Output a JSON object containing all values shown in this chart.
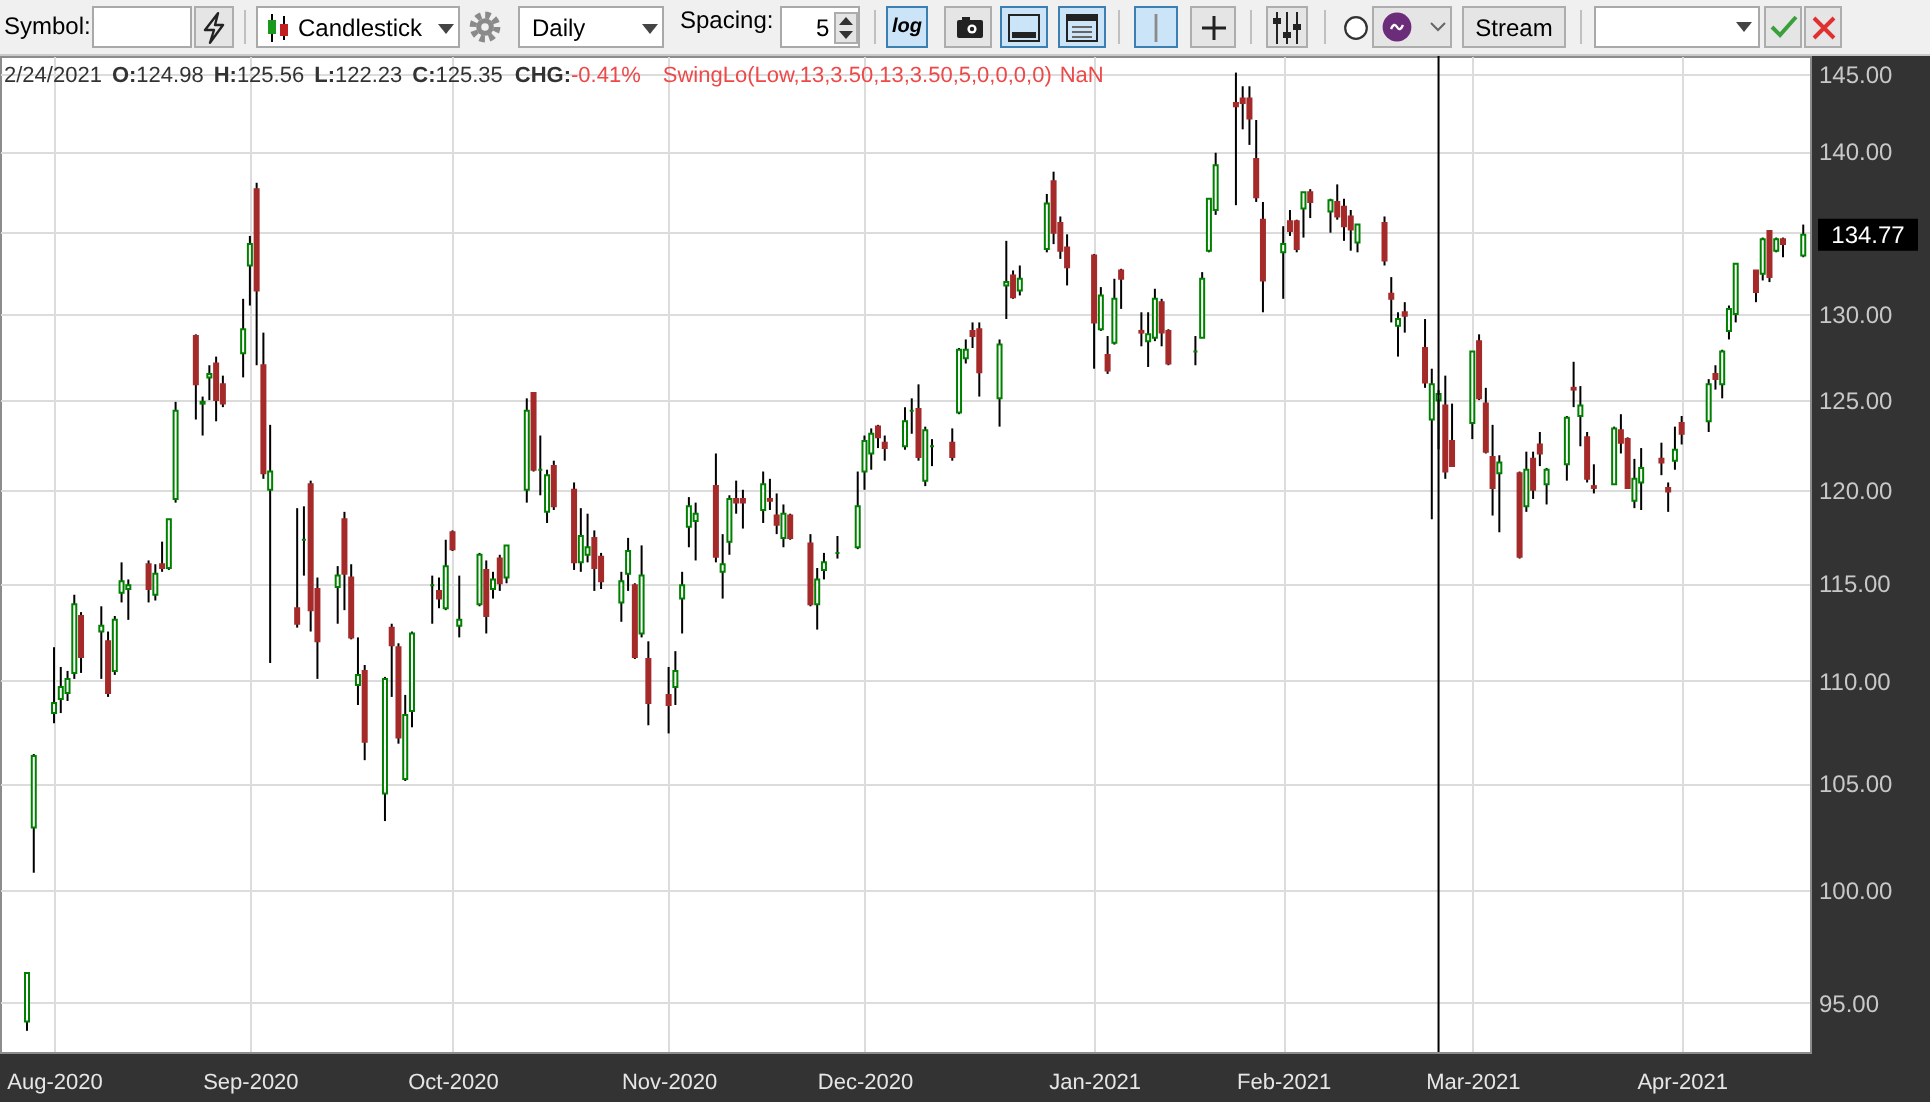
{
  "chart_data": {
    "type": "candlestick",
    "x": [
      "2020-07-30",
      "2020-07-31",
      "2020-08-03",
      "2020-08-04",
      "2020-08-05",
      "2020-08-06",
      "2020-08-07",
      "2020-08-10",
      "2020-08-11",
      "2020-08-12",
      "2020-08-13",
      "2020-08-14",
      "2020-08-17",
      "2020-08-18",
      "2020-08-19",
      "2020-08-20",
      "2020-08-21",
      "2020-08-24",
      "2020-08-25",
      "2020-08-26",
      "2020-08-27",
      "2020-08-28",
      "2020-08-31",
      "2020-09-01",
      "2020-09-02",
      "2020-09-03",
      "2020-09-04",
      "2020-09-08",
      "2020-09-09",
      "2020-09-10",
      "2020-09-11",
      "2020-09-14",
      "2020-09-15",
      "2020-09-16",
      "2020-09-17",
      "2020-09-18",
      "2020-09-21",
      "2020-09-22",
      "2020-09-23",
      "2020-09-24",
      "2020-09-25",
      "2020-09-28",
      "2020-09-29",
      "2020-09-30",
      "2020-10-01",
      "2020-10-02",
      "2020-10-05",
      "2020-10-06",
      "2020-10-07",
      "2020-10-08",
      "2020-10-09",
      "2020-10-12",
      "2020-10-13",
      "2020-10-14",
      "2020-10-15",
      "2020-10-16",
      "2020-10-19",
      "2020-10-20",
      "2020-10-21",
      "2020-10-22",
      "2020-10-23",
      "2020-10-26",
      "2020-10-27",
      "2020-10-28",
      "2020-10-29",
      "2020-10-30",
      "2020-11-02",
      "2020-11-03",
      "2020-11-04",
      "2020-11-05",
      "2020-11-06",
      "2020-11-09",
      "2020-11-10",
      "2020-11-11",
      "2020-11-12",
      "2020-11-13",
      "2020-11-16",
      "2020-11-17",
      "2020-11-18",
      "2020-11-19",
      "2020-11-20",
      "2020-11-23",
      "2020-11-24",
      "2020-11-25",
      "2020-11-27",
      "2020-11-30",
      "2020-12-01",
      "2020-12-02",
      "2020-12-03",
      "2020-12-04",
      "2020-12-07",
      "2020-12-08",
      "2020-12-09",
      "2020-12-10",
      "2020-12-11",
      "2020-12-14",
      "2020-12-15",
      "2020-12-16",
      "2020-12-17",
      "2020-12-18",
      "2020-12-21",
      "2020-12-22",
      "2020-12-23",
      "2020-12-24",
      "2020-12-28",
      "2020-12-29",
      "2020-12-30",
      "2020-12-31",
      "2021-01-04",
      "2021-01-05",
      "2021-01-06",
      "2021-01-07",
      "2021-01-08",
      "2021-01-11",
      "2021-01-12",
      "2021-01-13",
      "2021-01-14",
      "2021-01-15",
      "2021-01-19",
      "2021-01-20",
      "2021-01-21",
      "2021-01-22",
      "2021-01-25",
      "2021-01-26",
      "2021-01-27",
      "2021-01-28",
      "2021-01-29",
      "2021-02-01",
      "2021-02-02",
      "2021-02-03",
      "2021-02-04",
      "2021-02-05",
      "2021-02-08",
      "2021-02-09",
      "2021-02-10",
      "2021-02-11",
      "2021-02-12",
      "2021-02-16",
      "2021-02-17",
      "2021-02-18",
      "2021-02-19",
      "2021-02-22",
      "2021-02-23",
      "2021-02-24",
      "2021-02-25",
      "2021-02-26",
      "2021-03-01",
      "2021-03-02",
      "2021-03-03",
      "2021-03-04",
      "2021-03-05",
      "2021-03-08",
      "2021-03-09",
      "2021-03-10",
      "2021-03-11",
      "2021-03-12",
      "2021-03-15",
      "2021-03-16",
      "2021-03-17",
      "2021-03-18",
      "2021-03-19",
      "2021-03-22",
      "2021-03-23",
      "2021-03-24",
      "2021-03-25",
      "2021-03-26",
      "2021-03-29",
      "2021-03-30",
      "2021-03-31",
      "2021-04-01",
      "2021-04-05",
      "2021-04-06",
      "2021-04-07",
      "2021-04-08",
      "2021-04-09",
      "2021-04-12",
      "2021-04-13",
      "2021-04-14",
      "2021-04-15",
      "2021-04-16",
      "2021-04-19"
    ],
    "ohlc": [
      [
        94.2,
        96.3,
        93.8,
        96.3
      ],
      [
        102.9,
        106.4,
        100.8,
        106.3
      ],
      [
        108.4,
        111.7,
        107.9,
        108.9
      ],
      [
        109.1,
        110.7,
        108.4,
        109.7
      ],
      [
        109.4,
        110.5,
        109.0,
        110.1
      ],
      [
        110.4,
        114.4,
        110.1,
        113.9
      ],
      [
        113.3,
        113.5,
        110.4,
        111.2
      ],
      [
        112.5,
        113.8,
        110.1,
        112.8
      ],
      [
        112.0,
        112.5,
        109.2,
        109.4
      ],
      [
        110.5,
        113.3,
        110.3,
        113.1
      ],
      [
        114.5,
        116.1,
        114.0,
        115.1
      ],
      [
        114.7,
        115.2,
        113.1,
        114.9
      ],
      [
        116.0,
        116.2,
        114.0,
        114.7
      ],
      [
        114.4,
        116.0,
        114.1,
        115.5
      ],
      [
        116.0,
        117.2,
        115.6,
        115.8
      ],
      [
        115.8,
        118.4,
        115.7,
        118.4
      ],
      [
        119.5,
        124.9,
        119.3,
        124.4
      ],
      [
        128.7,
        128.8,
        123.9,
        125.9
      ],
      [
        124.8,
        125.2,
        123.0,
        124.9
      ],
      [
        126.3,
        127.0,
        125.0,
        126.5
      ],
      [
        127.1,
        127.5,
        123.8,
        125.0
      ],
      [
        125.9,
        126.4,
        124.6,
        124.8
      ],
      [
        127.7,
        130.9,
        126.3,
        129.1
      ],
      [
        132.9,
        134.7,
        130.5,
        134.2
      ],
      [
        137.6,
        138.0,
        127.0,
        131.4
      ],
      [
        127.0,
        128.9,
        120.6,
        120.9
      ],
      [
        120.0,
        123.6,
        110.9,
        121.0
      ],
      [
        113.7,
        119.0,
        112.7,
        112.9
      ],
      [
        117.3,
        119.1,
        115.4,
        117.3
      ],
      [
        120.3,
        120.5,
        112.5,
        113.6
      ],
      [
        114.7,
        115.3,
        110.1,
        112.0
      ],
      [
        114.8,
        115.9,
        112.9,
        115.4
      ],
      [
        118.4,
        118.8,
        113.6,
        115.5
      ],
      [
        115.3,
        116.0,
        112.1,
        112.2
      ],
      [
        109.8,
        112.2,
        108.8,
        110.3
      ],
      [
        110.5,
        110.8,
        106.1,
        107.0
      ],
      [
        104.5,
        110.2,
        103.2,
        110.1
      ],
      [
        112.7,
        112.9,
        109.2,
        111.8
      ],
      [
        111.7,
        111.9,
        106.9,
        107.2
      ],
      [
        105.2,
        109.3,
        105.1,
        108.3
      ],
      [
        108.5,
        112.5,
        107.7,
        112.4
      ],
      [
        114.9,
        115.4,
        112.9,
        114.9
      ],
      [
        114.6,
        115.3,
        113.7,
        114.2
      ],
      [
        113.7,
        117.3,
        113.6,
        115.9
      ],
      [
        117.7,
        117.8,
        116.7,
        116.8
      ],
      [
        112.8,
        115.4,
        112.2,
        113.1
      ],
      [
        113.9,
        116.6,
        113.8,
        116.5
      ],
      [
        115.7,
        116.2,
        112.4,
        113.3
      ],
      [
        114.7,
        115.6,
        114.2,
        115.2
      ],
      [
        116.3,
        116.5,
        114.6,
        115.0
      ],
      [
        115.3,
        117.0,
        115.0,
        117.0
      ],
      [
        120.0,
        125.1,
        119.3,
        124.4
      ],
      [
        125.4,
        125.4,
        121.0,
        121.1
      ],
      [
        121.1,
        123.0,
        119.7,
        121.1
      ],
      [
        118.8,
        121.1,
        118.2,
        120.8
      ],
      [
        121.3,
        121.6,
        118.9,
        119.1
      ],
      [
        120.0,
        120.4,
        115.7,
        116.1
      ],
      [
        116.1,
        119.0,
        115.6,
        117.5
      ],
      [
        116.5,
        118.7,
        116.1,
        116.9
      ],
      [
        117.4,
        117.8,
        114.6,
        115.8
      ],
      [
        116.4,
        116.6,
        114.7,
        115.1
      ],
      [
        114.0,
        115.6,
        113.0,
        115.1
      ],
      [
        115.5,
        117.4,
        114.6,
        116.7
      ],
      [
        114.9,
        115.0,
        111.1,
        111.2
      ],
      [
        112.4,
        117.0,
        112.2,
        115.4
      ],
      [
        111.1,
        112.0,
        107.8,
        108.9
      ],
      [
        109.3,
        110.7,
        107.4,
        108.8
      ],
      [
        109.7,
        111.5,
        108.8,
        110.5
      ],
      [
        114.2,
        115.6,
        112.4,
        114.9
      ],
      [
        118.0,
        119.6,
        116.9,
        119.1
      ],
      [
        118.3,
        119.3,
        116.2,
        118.7
      ],
      [
        120.2,
        122.0,
        116.1,
        116.4
      ],
      [
        115.6,
        117.6,
        114.2,
        116.0
      ],
      [
        117.2,
        119.7,
        116.5,
        119.5
      ],
      [
        119.5,
        120.5,
        118.7,
        119.3
      ],
      [
        119.5,
        120.0,
        117.9,
        119.3
      ],
      [
        118.9,
        121.0,
        118.2,
        120.3
      ],
      [
        119.5,
        120.6,
        118.9,
        119.4
      ],
      [
        118.6,
        119.8,
        117.6,
        118.1
      ],
      [
        117.4,
        119.2,
        116.9,
        118.7
      ],
      [
        118.6,
        118.7,
        117.3,
        117.4
      ],
      [
        117.1,
        117.6,
        113.8,
        113.9
      ],
      [
        113.9,
        115.8,
        112.6,
        115.2
      ],
      [
        115.7,
        116.6,
        115.2,
        116.1
      ],
      [
        116.6,
        117.5,
        116.3,
        116.6
      ],
      [
        116.9,
        121.0,
        116.8,
        119.1
      ],
      [
        121.0,
        123.0,
        120.0,
        122.7
      ],
      [
        122.0,
        123.4,
        121.1,
        123.1
      ],
      [
        123.5,
        123.6,
        122.3,
        122.9
      ],
      [
        122.6,
        123.0,
        121.6,
        122.3
      ],
      [
        122.4,
        124.6,
        122.2,
        123.8
      ],
      [
        124.4,
        125.1,
        123.1,
        124.4
      ],
      [
        124.5,
        125.9,
        121.6,
        121.8
      ],
      [
        120.5,
        123.5,
        120.2,
        123.3
      ],
      [
        122.4,
        122.8,
        121.3,
        122.4
      ],
      [
        122.6,
        123.4,
        121.6,
        121.8
      ],
      [
        124.3,
        128.0,
        124.2,
        127.9
      ],
      [
        127.4,
        128.5,
        127.1,
        127.9
      ],
      [
        129.0,
        129.5,
        128.0,
        128.7
      ],
      [
        129.1,
        129.5,
        125.2,
        126.6
      ],
      [
        125.1,
        128.5,
        123.5,
        128.2
      ],
      [
        131.7,
        134.4,
        129.7,
        131.9
      ],
      [
        132.3,
        132.6,
        130.9,
        131.0
      ],
      [
        131.4,
        132.9,
        131.1,
        132.1
      ],
      [
        133.9,
        137.3,
        133.7,
        136.7
      ],
      [
        138.1,
        138.7,
        134.2,
        134.9
      ],
      [
        135.5,
        135.9,
        133.3,
        133.8
      ],
      [
        134.0,
        134.8,
        131.7,
        132.8
      ],
      [
        133.5,
        133.6,
        126.8,
        129.5
      ],
      [
        129.1,
        131.6,
        129.0,
        131.1
      ],
      [
        127.6,
        128.7,
        126.5,
        126.7
      ],
      [
        128.3,
        132.1,
        128.2,
        130.9
      ],
      [
        132.6,
        132.7,
        130.3,
        132.1
      ],
      [
        129.0,
        130.1,
        128.1,
        128.9
      ],
      [
        128.4,
        130.1,
        126.9,
        128.8
      ],
      [
        128.6,
        131.5,
        128.4,
        130.9
      ],
      [
        130.7,
        130.9,
        128.1,
        128.9
      ],
      [
        129.0,
        129.1,
        127.0,
        127.1
      ],
      [
        127.8,
        128.7,
        127.0,
        127.8
      ],
      [
        128.6,
        132.5,
        128.6,
        132.1
      ],
      [
        133.8,
        137.0,
        133.7,
        137.0
      ],
      [
        136.3,
        139.9,
        136.0,
        139.1
      ],
      [
        143.1,
        145.1,
        136.6,
        142.9
      ],
      [
        143.4,
        144.2,
        141.4,
        143.1
      ],
      [
        143.4,
        144.2,
        140.4,
        142.1
      ],
      [
        139.5,
        142.0,
        136.8,
        137.1
      ],
      [
        135.7,
        136.8,
        130.1,
        132.0
      ],
      [
        133.7,
        135.3,
        130.9,
        134.2
      ],
      [
        135.6,
        136.3,
        134.7,
        135.0
      ],
      [
        135.6,
        135.7,
        133.7,
        133.9
      ],
      [
        136.4,
        137.4,
        134.6,
        137.4
      ],
      [
        137.4,
        137.6,
        135.8,
        136.8
      ],
      [
        136.2,
        137.0,
        134.9,
        136.9
      ],
      [
        136.8,
        137.9,
        135.7,
        135.9
      ],
      [
        136.5,
        137.0,
        134.4,
        135.3
      ],
      [
        135.9,
        136.3,
        133.8,
        135.1
      ],
      [
        134.3,
        135.4,
        133.7,
        135.4
      ],
      [
        135.5,
        135.9,
        132.9,
        133.2
      ],
      [
        131.2,
        132.2,
        129.5,
        130.9
      ],
      [
        129.3,
        130.1,
        127.5,
        129.7
      ],
      [
        130.1,
        130.7,
        128.9,
        129.9
      ],
      [
        128.0,
        129.7,
        125.7,
        126.0
      ],
      [
        123.9,
        126.8,
        118.4,
        125.9
      ],
      [
        124.98,
        125.56,
        122.23,
        125.35
      ],
      [
        124.7,
        126.4,
        120.6,
        121.0
      ],
      [
        122.7,
        124.8,
        121.3,
        121.3
      ],
      [
        123.7,
        127.8,
        122.8,
        127.8
      ],
      [
        128.4,
        128.8,
        125.0,
        125.1
      ],
      [
        124.8,
        125.7,
        122.0,
        122.1
      ],
      [
        121.8,
        123.6,
        118.6,
        120.1
      ],
      [
        120.9,
        121.9,
        117.7,
        121.5
      ],
      [
        120.9,
        121.0,
        116.3,
        116.4
      ],
      [
        119.1,
        122.1,
        118.8,
        121.1
      ],
      [
        121.7,
        122.1,
        119.5,
        120.0
      ],
      [
        122.5,
        123.2,
        121.3,
        122.0
      ],
      [
        120.3,
        121.2,
        119.2,
        121.1
      ],
      [
        121.4,
        124.1,
        120.5,
        124.0
      ],
      [
        125.7,
        127.2,
        124.6,
        125.6
      ],
      [
        124.1,
        125.8,
        122.4,
        124.7
      ],
      [
        122.9,
        123.2,
        120.4,
        120.6
      ],
      [
        120.2,
        121.4,
        119.8,
        120.1
      ],
      [
        120.3,
        123.5,
        120.3,
        123.4
      ],
      [
        123.3,
        124.2,
        122.0,
        122.6
      ],
      [
        122.8,
        122.9,
        120.1,
        120.1
      ],
      [
        119.4,
        121.7,
        119.0,
        120.6
      ],
      [
        120.4,
        122.3,
        118.9,
        121.2
      ],
      [
        121.7,
        122.6,
        120.8,
        121.5
      ],
      [
        120.1,
        120.4,
        118.8,
        119.9
      ],
      [
        121.6,
        123.5,
        121.1,
        122.2
      ],
      [
        123.7,
        124.1,
        122.5,
        123.1
      ],
      [
        123.8,
        126.2,
        123.2,
        125.9
      ],
      [
        126.5,
        127.0,
        125.6,
        126.2
      ],
      [
        125.9,
        127.9,
        125.1,
        127.8
      ],
      [
        129.0,
        130.5,
        128.5,
        130.3
      ],
      [
        130.0,
        133.0,
        129.5,
        133.0
      ],
      [
        132.6,
        132.6,
        130.7,
        131.3
      ],
      [
        132.4,
        134.6,
        132.0,
        134.5
      ],
      [
        135.0,
        135.0,
        131.9,
        132.2
      ],
      [
        133.8,
        134.6,
        133.7,
        134.5
      ],
      [
        134.5,
        134.6,
        133.4,
        134.2
      ],
      [
        133.5,
        135.4,
        133.4,
        134.77
      ]
    ],
    "colors": [
      "#008000",
      "#008000",
      "#008000",
      "#008000",
      "#008000",
      "#008000",
      "#a52a2a",
      "#008000",
      "#a52a2a",
      "#008000",
      "#008000",
      "#008000",
      "#a52a2a",
      "#008000",
      "#a52a2a",
      "#008000",
      "#008000",
      "#a52a2a",
      "#008000",
      "#008000",
      "#a52a2a",
      "#a52a2a",
      "#008000",
      "#008000",
      "#a52a2a",
      "#a52a2a",
      "#008000",
      "#a52a2a",
      "#008000",
      "#a52a2a",
      "#a52a2a",
      "#008000",
      "#a52a2a",
      "#a52a2a",
      "#008000",
      "#a52a2a",
      "#008000",
      "#a52a2a",
      "#a52a2a",
      "#008000",
      "#008000",
      "#008000",
      "#a52a2a",
      "#008000",
      "#a52a2a",
      "#008000",
      "#008000",
      "#a52a2a",
      "#008000",
      "#a52a2a",
      "#008000",
      "#008000",
      "#a52a2a",
      "#008000",
      "#008000",
      "#a52a2a",
      "#a52a2a",
      "#008000",
      "#008000",
      "#a52a2a",
      "#a52a2a",
      "#008000",
      "#008000",
      "#a52a2a",
      "#008000",
      "#a52a2a",
      "#a52a2a",
      "#008000",
      "#008000",
      "#008000",
      "#008000",
      "#a52a2a",
      "#008000",
      "#008000",
      "#a52a2a",
      "#a52a2a",
      "#008000",
      "#a52a2a",
      "#a52a2a",
      "#008000",
      "#a52a2a",
      "#a52a2a",
      "#008000",
      "#008000",
      "#008000",
      "#008000",
      "#008000",
      "#008000",
      "#a52a2a",
      "#a52a2a",
      "#008000",
      "#008000",
      "#a52a2a",
      "#008000",
      "#008000",
      "#a52a2a",
      "#008000",
      "#008000",
      "#a52a2a",
      "#a52a2a",
      "#008000",
      "#008000",
      "#a52a2a",
      "#008000",
      "#008000",
      "#a52a2a",
      "#a52a2a",
      "#a52a2a",
      "#a52a2a",
      "#008000",
      "#a52a2a",
      "#008000",
      "#a52a2a",
      "#a52a2a",
      "#008000",
      "#008000",
      "#a52a2a",
      "#a52a2a",
      "#008000",
      "#008000",
      "#008000",
      "#008000",
      "#a52a2a",
      "#a52a2a",
      "#a52a2a",
      "#a52a2a",
      "#a52a2a",
      "#008000",
      "#a52a2a",
      "#a52a2a",
      "#008000",
      "#a52a2a",
      "#008000",
      "#a52a2a",
      "#a52a2a",
      "#a52a2a",
      "#008000",
      "#a52a2a",
      "#a52a2a",
      "#008000",
      "#a52a2a",
      "#a52a2a",
      "#008000",
      "#008000",
      "#a52a2a",
      "#a52a2a",
      "#008000",
      "#a52a2a",
      "#a52a2a",
      "#a52a2a",
      "#008000",
      "#a52a2a",
      "#008000",
      "#a52a2a",
      "#a52a2a",
      "#008000",
      "#008000",
      "#a52a2a",
      "#008000",
      "#a52a2a",
      "#a52a2a",
      "#008000",
      "#a52a2a",
      "#a52a2a",
      "#008000",
      "#008000",
      "#a52a2a",
      "#a52a2a",
      "#008000",
      "#a52a2a",
      "#008000",
      "#a52a2a",
      "#008000",
      "#008000",
      "#008000",
      "#a52a2a",
      "#008000",
      "#a52a2a",
      "#008000",
      "#a52a2a",
      "#008000"
    ],
    "xlim": [
      "2020-07-26",
      "2021-04-20"
    ],
    "xticks": [
      {
        "value": "2020-08-03",
        "label": "Aug-2020"
      },
      {
        "value": "2020-09-01",
        "label": "Sep-2020"
      },
      {
        "value": "2020-10-01",
        "label": "Oct-2020"
      },
      {
        "value": "2020-11-02",
        "label": "Nov-2020"
      },
      {
        "value": "2020-12-01",
        "label": "Dec-2020"
      },
      {
        "value": "2021-01-04",
        "label": "Jan-2021"
      },
      {
        "value": "2021-02-01",
        "label": "Feb-2021"
      },
      {
        "value": "2021-03-01",
        "label": "Mar-2021"
      },
      {
        "value": "2021-04-01",
        "label": "Apr-2021"
      }
    ],
    "ylim": [
      92.9,
      146.2
    ],
    "yticks": [
      {
        "value": 95,
        "label": "95.00"
      },
      {
        "value": 100,
        "label": "100.00"
      },
      {
        "value": 105,
        "label": "105.00"
      },
      {
        "value": 110,
        "label": "110.00"
      },
      {
        "value": 115,
        "label": "115.00"
      },
      {
        "value": 120,
        "label": "120.00"
      },
      {
        "value": 125,
        "label": "125.00"
      },
      {
        "value": 130,
        "label": "130.00"
      },
      {
        "value": 135,
        "label": null
      },
      {
        "value": 140,
        "label": "140.00"
      },
      {
        "value": 145,
        "label": "145.00"
      }
    ],
    "log": true,
    "grid": true,
    "ref_lines": [
      {
        "axis": "x",
        "value": "2021-02-24",
        "color": "#000000"
      }
    ],
    "annotations": [
      "Symbol:",
      "Candlestick",
      "Daily",
      "Spacing:",
      "5",
      "log",
      "Stream",
      "2/24/2021",
      "O:124.98",
      "H:125.56",
      "L:122.23",
      "C:125.35",
      "CHG:",
      "-0.41%",
      "SwingLo(Low,13,3.50,13,3.50,5,0,0,0,0)",
      "NaN",
      {
        "text": "134.77",
        "x": "2021-04-19",
        "y": 134.77
      }
    ]
  }
}
